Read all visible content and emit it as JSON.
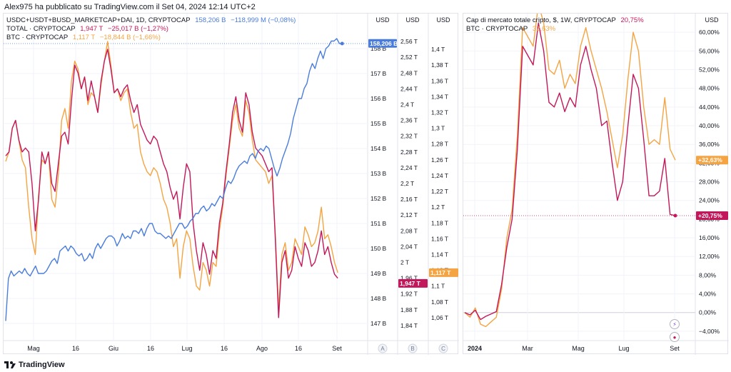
{
  "header": {
    "text": "Alex975 ha pubblicato su TradingView.com il Set 04, 2024 12:14 UTC+2"
  },
  "footer": {
    "brand": "TradingView"
  },
  "colors": {
    "blue": "#4a7ddb",
    "crimson": "#c2185b",
    "orange": "#f4a442",
    "grid": "#f0f3fa",
    "axis": "#787b86"
  },
  "left_legend": [
    {
      "name": "USDC+USDT+BUSD_MARKETCAP+DAI, 1D, CRYPTOCAP",
      "value": "158,206 B",
      "change": "−118,999 M (−0,08%)",
      "color": "#4a7ddb"
    },
    {
      "name": "TOTAL · CRYPTOCAP",
      "value": "1,947 T",
      "change": "−25,017 B (−1,27%)",
      "color": "#c2185b"
    },
    {
      "name": "BTC · CRYPTOCAP",
      "value": "1,117 T",
      "change": "−18,844 B (−1,66%)",
      "color": "#f4a442"
    }
  ],
  "right_legend": [
    {
      "name": "Cap di mercato totale cripto, $, 1W, CRYPTOCAP",
      "value": "20,75%",
      "color": "#c2185b"
    },
    {
      "name": "BTC · CRYPTOCAP",
      "value": "32,63%",
      "color": "#f4a442"
    }
  ],
  "left_axis_labels": {
    "a": "USD",
    "b": "USD",
    "c": "USD",
    "a_letter": "A",
    "b_letter": "B",
    "c_letter": "C"
  },
  "right_axis_label": "USD",
  "chart_data": [
    {
      "type": "line",
      "title": "USDC+USDT+BUSD_MARKETCAP+DAI vs TOTAL vs BTC (1D)",
      "x_ticks": [
        "Mag",
        "16",
        "Giu",
        "16",
        "Lug",
        "16",
        "Ago",
        "16",
        "Set"
      ],
      "axis_a": {
        "unit": "B",
        "ylim": [
          146.6,
          158.6
        ],
        "ticks": [
          "158 B",
          "157 B",
          "156 B",
          "155 B",
          "154 B",
          "153 B",
          "152 B",
          "151 B",
          "150 B",
          "149 B",
          "148 B",
          "147 B"
        ],
        "last": "158,206 B"
      },
      "axis_b": {
        "unit": "T",
        "ylim": [
          1.82,
          2.58
        ],
        "ticks": [
          "2,56 T",
          "2,52 T",
          "2,48 T",
          "2,44 T",
          "2,4 T",
          "2,36 T",
          "2,32 T",
          "2,28 T",
          "2,24 T",
          "2,2 T",
          "2,16 T",
          "2,12 T",
          "2,08 T",
          "2,04 T",
          "2 T",
          "1,96 T",
          "1,92 T",
          "1,88 T",
          "1,84 T"
        ],
        "last": "1,947 T"
      },
      "axis_c": {
        "unit": "T",
        "ylim": [
          1.04,
          1.42
        ],
        "ticks": [
          "1,4 T",
          "1,38 T",
          "1,36 T",
          "1,34 T",
          "1,32 T",
          "1,3 T",
          "1,28 T",
          "1,26 T",
          "1,24 T",
          "1,22 T",
          "1,2 T",
          "1,18 T",
          "1,16 T",
          "1,14 T",
          "1,12 T",
          "1,1 T",
          "1,08 T",
          "1,06 T"
        ],
        "last": "1,117 T"
      },
      "series": [
        {
          "name": "USDC+USDT+BUSD_MARKETCAP+DAI",
          "axis": "a",
          "color": "#4a7ddb",
          "values": [
            147.1,
            148.8,
            149.1,
            148.9,
            149.0,
            149.1,
            149.0,
            149.2,
            149.0,
            148.9,
            149.1,
            149.3,
            149.0,
            149.0,
            149.0,
            149.1,
            149.3,
            149.5,
            149.6,
            149.4,
            149.9,
            150.0,
            150.1,
            149.9,
            150.1,
            150.0,
            149.8,
            149.7,
            149.8,
            149.5,
            149.6,
            149.8,
            149.6,
            150.0,
            150.2,
            150.0,
            150.2,
            150.4,
            150.5,
            150.5,
            150.4,
            150.1,
            150.3,
            150.6,
            150.4,
            150.5,
            150.4,
            150.7,
            150.7,
            150.6,
            150.8,
            150.5,
            150.8,
            151.0,
            151.0,
            150.7,
            150.6,
            150.6,
            150.5,
            150.4,
            150.5,
            150.4,
            150.6,
            150.8,
            151.0,
            151.0,
            150.8,
            150.9,
            151.1,
            151.2,
            151.4,
            151.4,
            151.6,
            151.7,
            151.5,
            151.6,
            151.8,
            151.7,
            151.9,
            152.1,
            152.0,
            152.4,
            152.7,
            152.6,
            152.8,
            153.1,
            153.3,
            153.4,
            153.5,
            153.4,
            153.7,
            153.8,
            153.6,
            153.9,
            154.0,
            153.9,
            154.1,
            154.0,
            153.6,
            153.2,
            152.9,
            153.2,
            153.6,
            153.9,
            154.2,
            154.6,
            155.2,
            155.6,
            156.0,
            156.0,
            156.4,
            156.6,
            157.1,
            157.4,
            157.2,
            157.6,
            157.9,
            157.6,
            158.0,
            158.1,
            158.3,
            158.3,
            158.4,
            158.2,
            158.2
          ]
        },
        {
          "name": "TOTAL · CRYPTOCAP",
          "axis": "b",
          "color": "#c2185b",
          "values": [
            2.27,
            2.28,
            2.34,
            2.36,
            2.31,
            2.28,
            2.29,
            2.28,
            2.2,
            2.08,
            2.16,
            2.28,
            2.25,
            2.28,
            2.2,
            2.18,
            2.25,
            2.32,
            2.33,
            2.3,
            2.41,
            2.5,
            2.48,
            2.44,
            2.47,
            2.41,
            2.46,
            2.42,
            2.38,
            2.46,
            2.51,
            2.54,
            2.49,
            2.43,
            2.44,
            2.42,
            2.44,
            2.45,
            2.41,
            2.38,
            2.4,
            2.35,
            2.33,
            2.31,
            2.3,
            2.32,
            2.31,
            2.28,
            2.25,
            2.23,
            2.19,
            2.16,
            2.18,
            2.11,
            2.19,
            2.25,
            2.23,
            2.1,
            2.03,
            1.98,
            2.05,
            2.02,
            1.97,
            2.03,
            2.01,
            2.1,
            2.15,
            2.23,
            2.3,
            2.38,
            2.42,
            2.36,
            2.33,
            2.43,
            2.4,
            2.33,
            2.29,
            2.28,
            2.27,
            2.25,
            2.23,
            2.24,
            2.06,
            1.86,
            2.0,
            2.03,
            1.96,
            1.98,
            2.04,
            2.01,
            1.99,
            2.05,
            2.03,
            1.99,
            2.0,
            2.03,
            2.08,
            2.02,
            2.04,
            2.0,
            1.97,
            1.96
          ],
          "x_fraction_end": 0.918
        },
        {
          "name": "BTC · CRYPTOCAP",
          "axis": "c",
          "color": "#f4a442",
          "values": [
            1.258,
            1.27,
            1.3,
            1.31,
            1.285,
            1.26,
            1.25,
            1.2,
            1.16,
            1.14,
            1.215,
            1.26,
            1.255,
            1.27,
            1.21,
            1.2,
            1.24,
            1.31,
            1.325,
            1.3,
            1.36,
            1.385,
            1.375,
            1.35,
            1.365,
            1.33,
            1.345,
            1.34,
            1.32,
            1.355,
            1.385,
            1.41,
            1.38,
            1.345,
            1.35,
            1.335,
            1.345,
            1.35,
            1.32,
            1.3,
            1.305,
            1.27,
            1.255,
            1.245,
            1.24,
            1.25,
            1.245,
            1.23,
            1.21,
            1.2,
            1.18,
            1.15,
            1.16,
            1.11,
            1.15,
            1.17,
            1.16,
            1.125,
            1.1,
            1.095,
            1.13,
            1.12,
            1.1,
            1.13,
            1.125,
            1.17,
            1.2,
            1.24,
            1.275,
            1.31,
            1.33,
            1.3,
            1.29,
            1.335,
            1.32,
            1.285,
            1.26,
            1.255,
            1.25,
            1.245,
            1.23,
            1.24,
            1.165,
            1.07,
            1.14,
            1.155,
            1.12,
            1.13,
            1.16,
            1.15,
            1.14,
            1.175,
            1.165,
            1.15,
            1.155,
            1.17,
            1.2,
            1.16,
            1.165,
            1.15,
            1.13,
            1.117
          ],
          "x_fraction_end": 0.918
        }
      ]
    },
    {
      "type": "line",
      "title": "Cap di mercato totale cripto, $, 1W, CRYPTOCAP",
      "x_ticks": [
        "2024",
        "Mar",
        "Mag",
        "Lug",
        "Set"
      ],
      "y_unit": "%",
      "ylim": [
        -6,
        64
      ],
      "y_ticks": [
        "60,00%",
        "56,00%",
        "52,00%",
        "48,00%",
        "44,00%",
        "40,00%",
        "36,00%",
        "32,00%",
        "28,00%",
        "24,00%",
        "20,00%",
        "16,00%",
        "12,00%",
        "8,00%",
        "4,00%",
        "0,00%",
        "−4,00%"
      ],
      "series": [
        {
          "name": "Cap di mercato totale cripto",
          "color": "#c2185b",
          "last": "+20,75%",
          "values": [
            0.0,
            -0.5,
            0.5,
            -1.5,
            -0.8,
            -0.3,
            0.2,
            6,
            14,
            20,
            35,
            57,
            55,
            53,
            62,
            56,
            45,
            44,
            47,
            43,
            46,
            44,
            53,
            57,
            52,
            48,
            40,
            41,
            32,
            24,
            28,
            40,
            51,
            48,
            37,
            25,
            25,
            26,
            33,
            21,
            20.75
          ]
        },
        {
          "name": "BTC · CRYPTOCAP",
          "color": "#f4a442",
          "last": "+32,63%",
          "values": [
            0.0,
            -1.0,
            1.0,
            -2.5,
            -3.0,
            -2.0,
            -1.0,
            5,
            16,
            22,
            38,
            61,
            59,
            57,
            66,
            62,
            52,
            51,
            54,
            48,
            51,
            49,
            57,
            61,
            56,
            52,
            48,
            43,
            37,
            31,
            38,
            50,
            60,
            56,
            44,
            36,
            37,
            36,
            46,
            35,
            32.63
          ]
        }
      ]
    }
  ]
}
